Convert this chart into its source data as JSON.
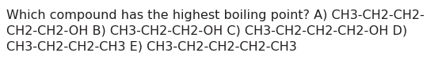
{
  "text": "Which compound has the highest boiling point? A) CH3-CH2-CH2-\nCH2-CH2-OH B) CH3-CH2-CH2-OH C) CH3-CH2-CH2-CH2-OH D)\nCH3-CH2-CH2-CH3 E) CH3-CH2-CH2-CH2-CH3",
  "background_color": "#ffffff",
  "text_color": "#231f20",
  "font_size": 11.5,
  "figwidth": 5.58,
  "figheight": 1.05,
  "dpi": 100
}
